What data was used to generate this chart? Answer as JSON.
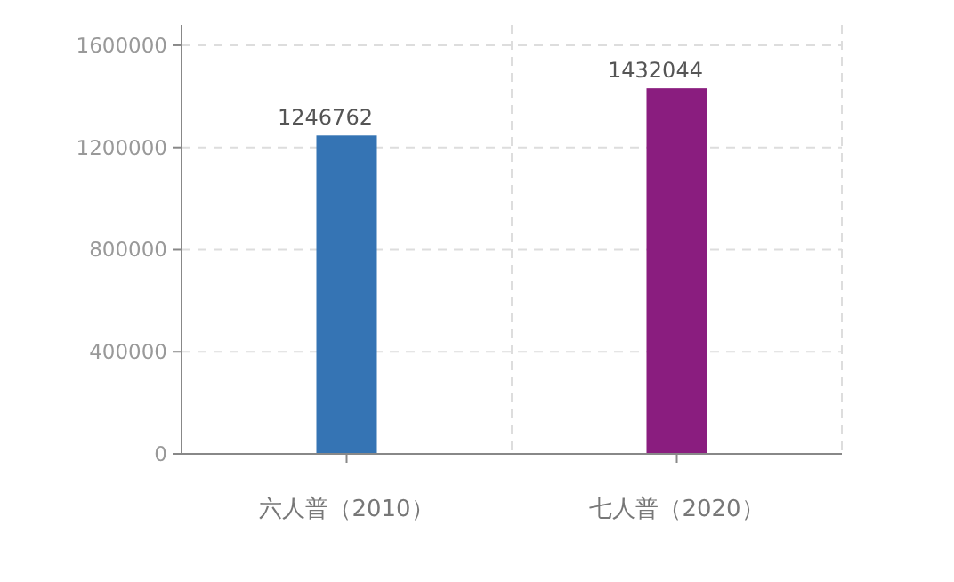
{
  "chart_data": {
    "type": "bar",
    "categories": [
      "六人普（2010）",
      "七人普（2020）"
    ],
    "values": [
      1246762,
      1432044
    ],
    "colors": [
      "#3574b4",
      "#8a1d7f"
    ],
    "ylim": [
      0,
      1680000
    ],
    "yticks": [
      0,
      400000,
      800000,
      1200000,
      1600000
    ],
    "grid": true,
    "data_labels": true
  }
}
